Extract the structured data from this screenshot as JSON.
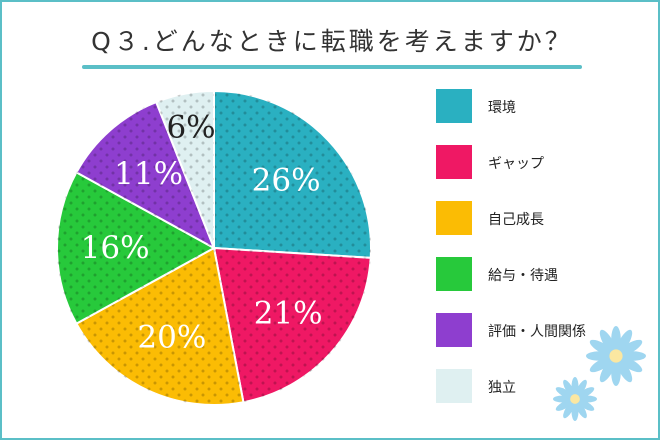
{
  "title": "Q３.どんなときに転職を考えますか？",
  "chart_data": {
    "type": "pie",
    "title": "Q３.どんなときに転職を考えますか？",
    "slices": [
      {
        "label": "環境",
        "value": 26,
        "display": "26%",
        "color": "#2ab0c1"
      },
      {
        "label": "ギャップ",
        "value": 21,
        "display": "21%",
        "color": "#ef1864"
      },
      {
        "label": "自己成長",
        "value": 20,
        "display": "20%",
        "color": "#fbbc04"
      },
      {
        "label": "給与・待遇",
        "value": 16,
        "display": "16%",
        "color": "#27c93b"
      },
      {
        "label": "評価・人間関係",
        "value": 11,
        "display": "11%",
        "color": "#8e3ecf"
      },
      {
        "label": "独立",
        "value": 6,
        "display": "6%",
        "color": "#dff0f1"
      }
    ],
    "legend_position": "right"
  }
}
